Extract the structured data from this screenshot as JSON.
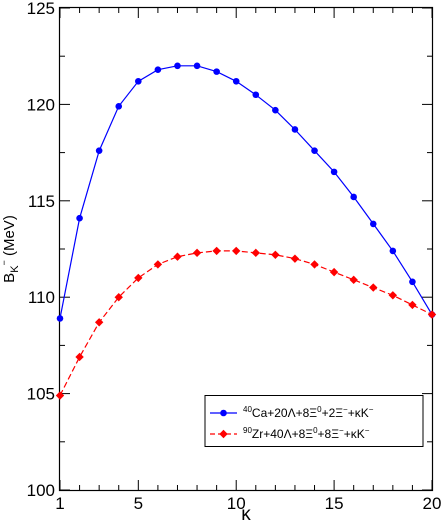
{
  "chart_data": {
    "type": "line",
    "xlabel": "κ",
    "ylabel_main": "B",
    "ylabel_sub": "K",
    "ylabel_sup": "−",
    "ylabel_unit": " (MeV)",
    "xlim": [
      1,
      20
    ],
    "ylim": [
      100,
      125
    ],
    "x_ticks": [
      1,
      5,
      10,
      15,
      20
    ],
    "y_ticks": [
      100,
      105,
      110,
      115,
      120,
      125
    ],
    "x_tick_labels": [
      "1",
      "5",
      "10",
      "15",
      "20"
    ],
    "y_tick_labels": [
      "100",
      "105",
      "110",
      "115",
      "120",
      "125"
    ],
    "grid": false,
    "legend_position": "bottom-right",
    "x": [
      1,
      2,
      3,
      4,
      5,
      6,
      7,
      8,
      9,
      10,
      11,
      12,
      13,
      14,
      15,
      16,
      17,
      18,
      19,
      20
    ],
    "series": [
      {
        "color": "#0000ff",
        "marker": "circle",
        "line_style": "solid",
        "legend": {
          "sup1": "40",
          "t1": "Ca+20Λ+8Ξ",
          "sup2": "0",
          "t2": "+2Ξ",
          "sup3": "−",
          "t3": "+κK",
          "sup4": "−"
        },
        "values": [
          108.9,
          114.1,
          117.6,
          119.9,
          121.2,
          121.8,
          122.0,
          122.0,
          121.7,
          121.2,
          120.5,
          119.7,
          118.7,
          117.6,
          116.5,
          115.2,
          113.8,
          112.4,
          110.8,
          109.1
        ]
      },
      {
        "color": "#ff0000",
        "marker": "diamond",
        "line_style": "dashed",
        "legend": {
          "sup1": "90",
          "t1": "Zr+40Λ+8Ξ",
          "sup2": "0",
          "t2": "+8Ξ",
          "sup3": "−",
          "t3": "+κK",
          "sup4": "−"
        },
        "values": [
          104.9,
          106.9,
          108.7,
          110.0,
          111.0,
          111.7,
          112.1,
          112.3,
          112.4,
          112.4,
          112.3,
          112.2,
          112.0,
          111.7,
          111.3,
          110.9,
          110.5,
          110.1,
          109.6,
          109.1
        ]
      }
    ]
  }
}
